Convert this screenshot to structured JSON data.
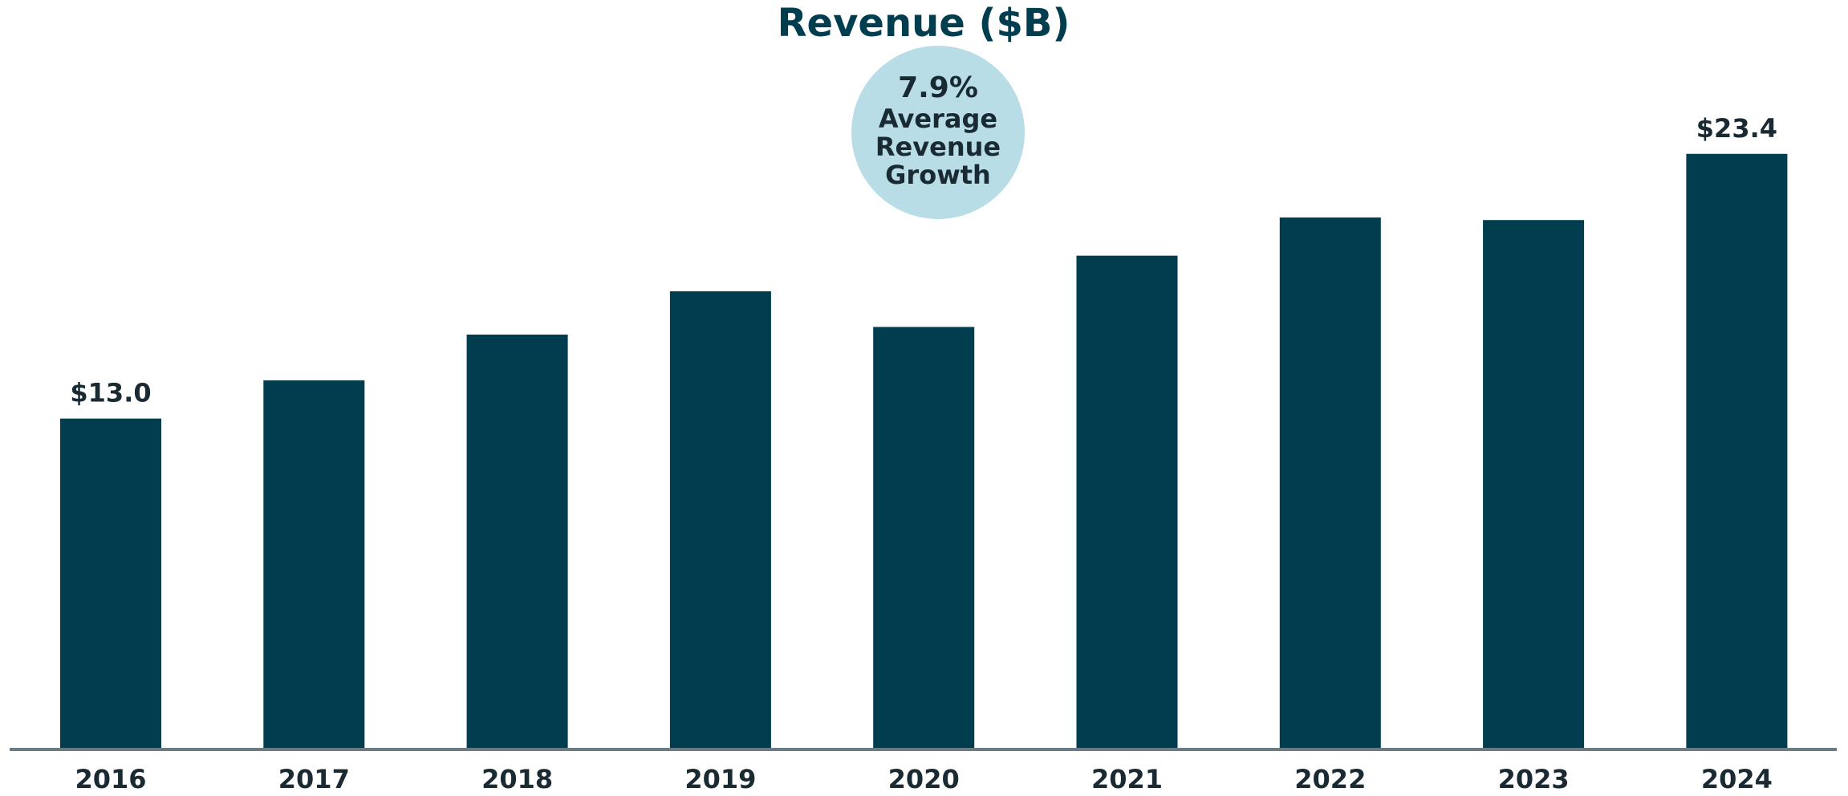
{
  "chart_data": {
    "type": "bar",
    "title": "Revenue ($B)",
    "annotation": [
      "7.9%",
      "Average",
      "Revenue",
      "Growth"
    ],
    "categories": [
      "2016",
      "2017",
      "2018",
      "2019",
      "2020",
      "2021",
      "2022",
      "2023",
      "2024"
    ],
    "values": [
      13.0,
      14.5,
      16.3,
      18.0,
      16.6,
      19.4,
      20.9,
      20.8,
      23.4
    ],
    "value_labels": [
      "$13.0",
      null,
      null,
      null,
      null,
      null,
      null,
      null,
      "$23.4"
    ],
    "color": "#003d4f",
    "ylim": [
      0,
      25
    ]
  }
}
